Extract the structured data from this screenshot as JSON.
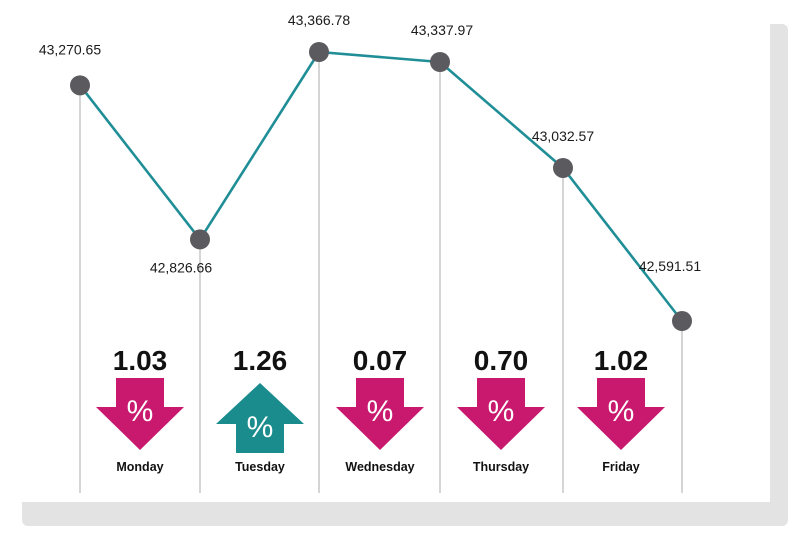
{
  "colors": {
    "line": "#1f8e96",
    "marker": "#5b5b5f",
    "grid": "#b9b9b9",
    "down": "#c8196e",
    "up": "#1a8c8e",
    "card_shadow": "#dcdcdc"
  },
  "chart_data": {
    "type": "line",
    "title": "",
    "xlabel": "",
    "ylabel": "",
    "categories": [
      "",
      "Monday",
      "Tuesday",
      "Wednesday",
      "Thursday",
      "Friday"
    ],
    "series": [
      {
        "values": [
          43270.65,
          42826.66,
          43366.78,
          43337.97,
          43032.57,
          42591.51
        ]
      }
    ],
    "value_labels": [
      "43,270.65",
      "42,826.66",
      "43,366.78",
      "43,337.97",
      "43,032.57",
      "42,591.51"
    ],
    "ylim": [
      42500,
      43420
    ],
    "grid": "vertical lines at each point",
    "daily_changes": [
      {
        "day": "Monday",
        "percent": "1.03",
        "direction": "down",
        "icon": "percent-down-arrow-icon"
      },
      {
        "day": "Tuesday",
        "percent": "1.26",
        "direction": "up",
        "icon": "percent-up-arrow-icon"
      },
      {
        "day": "Wednesday",
        "percent": "0.07",
        "direction": "down",
        "icon": "percent-down-arrow-icon"
      },
      {
        "day": "Thursday",
        "percent": "0.70",
        "direction": "down",
        "icon": "percent-down-arrow-icon"
      },
      {
        "day": "Friday",
        "percent": "1.02",
        "direction": "down",
        "icon": "percent-down-arrow-icon"
      }
    ],
    "percent_symbol": "%"
  }
}
